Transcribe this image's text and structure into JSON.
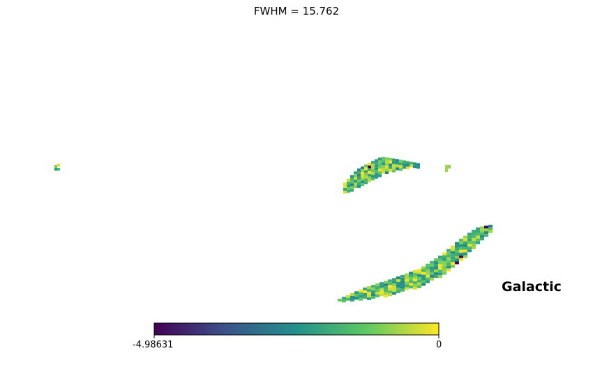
{
  "chart_data": {
    "type": "heatmap",
    "title": "FWHM = 15.762",
    "projection": "mollweide",
    "coordinate_system": "Galactic",
    "colormap": "viridis",
    "colorbar": {
      "min_label": "-4.98631",
      "max_label": "0",
      "range": [
        -4.98631,
        0
      ],
      "orientation": "horizontal",
      "placement": "bottom"
    },
    "masked_background": "white"
  },
  "colors": {
    "viridis_stops": [
      "#440154",
      "#3b528b",
      "#21918c",
      "#5ec962",
      "#fde725"
    ]
  }
}
